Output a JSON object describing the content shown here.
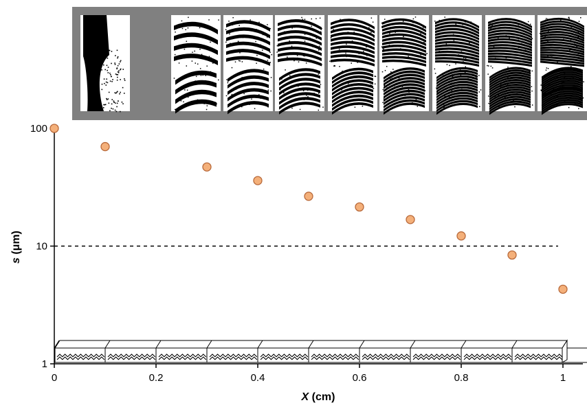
{
  "chart_data": {
    "type": "scatter",
    "x": [
      0,
      0.1,
      0.3,
      0.4,
      0.5,
      0.6,
      0.7,
      0.8,
      0.9,
      1.0
    ],
    "y": [
      100,
      70,
      47,
      36,
      26.5,
      21.5,
      16.8,
      12.2,
      8.4,
      4.3
    ],
    "xlabel_var": "X",
    "xlabel_unit": " (cm)",
    "ylabel_var": "s",
    "ylabel_unit": " (μm)",
    "xlim": [
      0,
      1.0
    ],
    "ylim": [
      1,
      100
    ],
    "yscale": "log",
    "x_ticks": [
      "0",
      "0.2",
      "0.4",
      "0.6",
      "0.8",
      "1"
    ],
    "y_ticks": [
      "1",
      "10",
      "100"
    ],
    "reference_line_y": 10,
    "grid": false,
    "colors": {
      "marker_fill": "#f4b07a",
      "marker_stroke": "#b8693a",
      "inset_bg": "#808080"
    },
    "inset_panel_count": 10
  }
}
